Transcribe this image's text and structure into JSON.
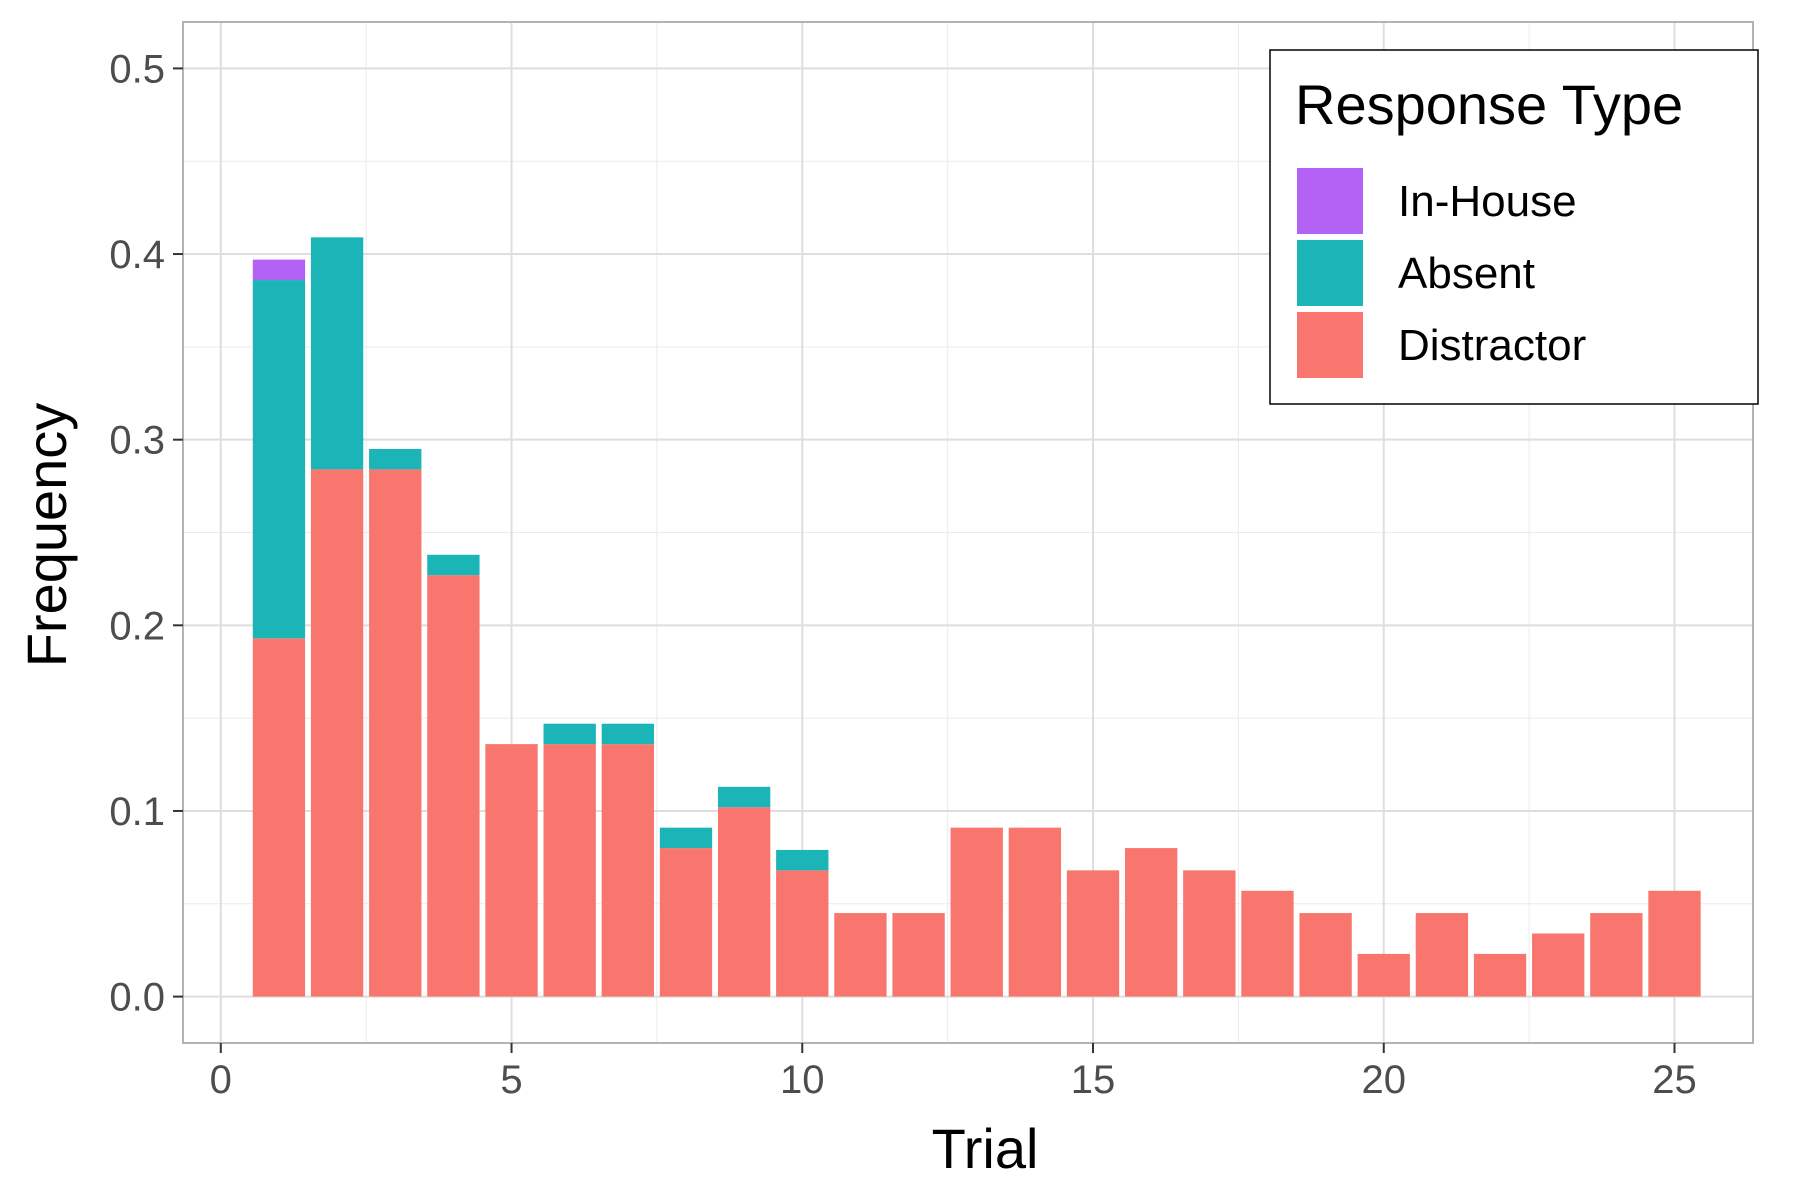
{
  "chart_data": {
    "type": "bar",
    "stacked": true,
    "x": [
      1,
      2,
      3,
      4,
      5,
      6,
      7,
      8,
      9,
      10,
      11,
      12,
      13,
      14,
      15,
      16,
      17,
      18,
      19,
      20,
      21,
      22,
      23,
      24,
      25
    ],
    "series": [
      {
        "name": "Distractor",
        "color": "#F8766D",
        "values": [
          0.193,
          0.284,
          0.284,
          0.227,
          0.136,
          0.136,
          0.136,
          0.08,
          0.102,
          0.068,
          0.045,
          0.045,
          0.091,
          0.091,
          0.068,
          0.08,
          0.068,
          0.057,
          0.045,
          0.023,
          0.045,
          0.023,
          0.034,
          0.045,
          0.057
        ]
      },
      {
        "name": "Absent",
        "color": "#1BB5B8",
        "values": [
          0.193,
          0.125,
          0.011,
          0.011,
          0.0,
          0.011,
          0.011,
          0.011,
          0.011,
          0.011,
          0.0,
          0.0,
          0.0,
          0.0,
          0.0,
          0.0,
          0.0,
          0.0,
          0.0,
          0.0,
          0.0,
          0.0,
          0.0,
          0.0,
          0.0
        ]
      },
      {
        "name": "In-House",
        "color": "#B462F6",
        "values": [
          0.011,
          0.0,
          0.0,
          0.0,
          0.0,
          0.0,
          0.0,
          0.0,
          0.0,
          0.0,
          0.0,
          0.0,
          0.0,
          0.0,
          0.0,
          0.0,
          0.0,
          0.0,
          0.0,
          0.0,
          0.0,
          0.0,
          0.0,
          0.0,
          0.0
        ]
      }
    ],
    "legend_order": [
      "In-House",
      "Absent",
      "Distractor"
    ],
    "xlabel": "Trial",
    "ylabel": "Frequency",
    "legend_title": "Response Type",
    "xlim": [
      -0.65,
      26.35
    ],
    "ylim": [
      -0.025,
      0.525
    ],
    "xticks": [
      0,
      5,
      10,
      15,
      20,
      25
    ],
    "xtick_labels": [
      "0",
      "5",
      "10",
      "15",
      "20",
      "25"
    ],
    "yticks": [
      0.0,
      0.1,
      0.2,
      0.3,
      0.4,
      0.5
    ],
    "ytick_labels": [
      "0.0",
      "0.1",
      "0.2",
      "0.3",
      "0.4",
      "0.5"
    ],
    "grid": true,
    "legend_position": "top-right",
    "bar_width": 0.9
  }
}
